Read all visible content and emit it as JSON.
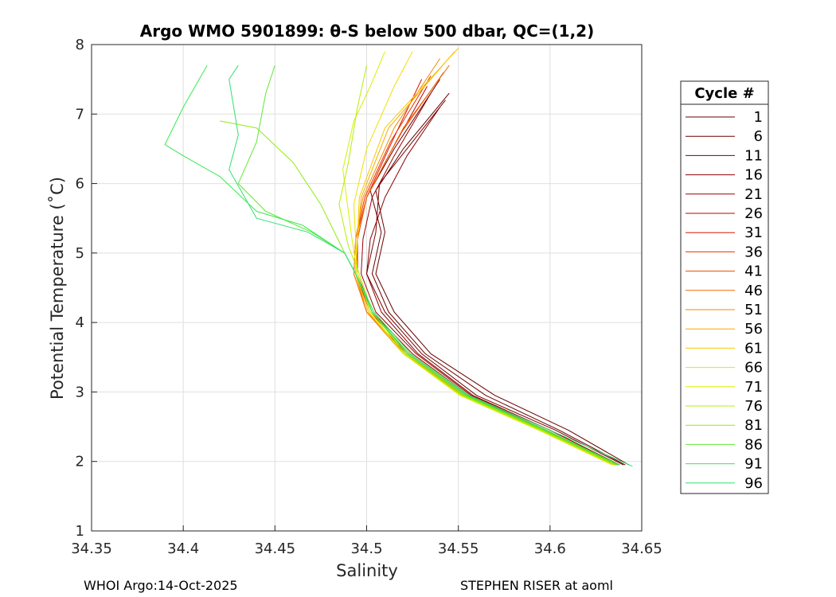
{
  "chart_data": {
    "type": "line",
    "title": "Argo WMO 5901899: θ-S below 500 dbar,  QC=(1,2)",
    "xlabel": "Salinity",
    "ylabel": "Potential Temperature (˚C)",
    "xlim": [
      34.35,
      34.65
    ],
    "ylim": [
      1,
      8
    ],
    "xticks": [
      "34.35",
      "34.4",
      "34.45",
      "34.5",
      "34.55",
      "34.6",
      "34.65"
    ],
    "yticks": [
      "1",
      "2",
      "3",
      "4",
      "5",
      "6",
      "7",
      "8"
    ],
    "grid": true,
    "legend_title": "Cycle #",
    "legend_position": "outside-right",
    "series": [
      {
        "name": "1",
        "color": "#660000",
        "points": [
          [
            34.643,
            1.95
          ],
          [
            34.61,
            2.45
          ],
          [
            34.57,
            2.95
          ],
          [
            34.535,
            3.55
          ],
          [
            34.515,
            4.15
          ],
          [
            34.505,
            4.7
          ],
          [
            34.51,
            5.3
          ],
          [
            34.505,
            5.9
          ],
          [
            34.52,
            6.5
          ],
          [
            34.545,
            7.3
          ]
        ]
      },
      {
        "name": "6",
        "color": "#6b0000",
        "points": [
          [
            34.641,
            1.95
          ],
          [
            34.605,
            2.45
          ],
          [
            34.565,
            2.95
          ],
          [
            34.532,
            3.55
          ],
          [
            34.512,
            4.15
          ],
          [
            34.503,
            4.7
          ],
          [
            34.508,
            5.3
          ],
          [
            34.502,
            5.9
          ],
          [
            34.515,
            6.5
          ],
          [
            34.54,
            7.5
          ]
        ]
      },
      {
        "name": "11",
        "color": "#7a0000",
        "points": [
          [
            34.64,
            1.95
          ],
          [
            34.603,
            2.45
          ],
          [
            34.56,
            2.95
          ],
          [
            34.53,
            3.55
          ],
          [
            34.51,
            4.15
          ],
          [
            34.5,
            4.7
          ],
          [
            34.505,
            5.3
          ],
          [
            34.507,
            6.0
          ],
          [
            34.525,
            6.6
          ],
          [
            34.543,
            7.2
          ]
        ]
      },
      {
        "name": "16",
        "color": "#8a0000",
        "points": [
          [
            34.638,
            1.95
          ],
          [
            34.6,
            2.45
          ],
          [
            34.558,
            2.95
          ],
          [
            34.528,
            3.55
          ],
          [
            34.508,
            4.15
          ],
          [
            34.5,
            4.7
          ],
          [
            34.502,
            5.2
          ],
          [
            34.51,
            5.8
          ],
          [
            34.522,
            6.4
          ],
          [
            34.54,
            7.1
          ]
        ]
      },
      {
        "name": "21",
        "color": "#9e0000",
        "points": [
          [
            34.638,
            1.95
          ],
          [
            34.6,
            2.45
          ],
          [
            34.557,
            2.95
          ],
          [
            34.527,
            3.55
          ],
          [
            34.505,
            4.15
          ],
          [
            34.497,
            4.7
          ],
          [
            34.498,
            5.2
          ],
          [
            34.503,
            5.8
          ],
          [
            34.515,
            6.4
          ],
          [
            34.535,
            7.3
          ]
        ]
      },
      {
        "name": "26",
        "color": "#c00000",
        "points": [
          [
            34.637,
            1.95
          ],
          [
            34.598,
            2.45
          ],
          [
            34.556,
            2.95
          ],
          [
            34.525,
            3.55
          ],
          [
            34.503,
            4.15
          ],
          [
            34.495,
            4.7
          ],
          [
            34.495,
            5.2
          ],
          [
            34.5,
            5.8
          ],
          [
            34.512,
            6.4
          ],
          [
            34.533,
            7.4
          ]
        ]
      },
      {
        "name": "31",
        "color": "#d81800",
        "points": [
          [
            34.637,
            1.95
          ],
          [
            34.598,
            2.45
          ],
          [
            34.555,
            2.95
          ],
          [
            34.523,
            3.55
          ],
          [
            34.502,
            4.15
          ],
          [
            34.494,
            4.7
          ],
          [
            34.495,
            5.2
          ],
          [
            34.5,
            5.8
          ],
          [
            34.512,
            6.5
          ],
          [
            34.53,
            7.5
          ]
        ]
      },
      {
        "name": "36",
        "color": "#e83000",
        "points": [
          [
            34.636,
            1.95
          ],
          [
            34.597,
            2.45
          ],
          [
            34.554,
            2.95
          ],
          [
            34.522,
            3.55
          ],
          [
            34.5,
            4.15
          ],
          [
            34.493,
            4.7
          ],
          [
            34.494,
            5.2
          ],
          [
            34.499,
            5.8
          ],
          [
            34.513,
            6.6
          ],
          [
            34.535,
            7.55
          ]
        ]
      },
      {
        "name": "41",
        "color": "#f04800",
        "points": [
          [
            34.636,
            1.95
          ],
          [
            34.596,
            2.45
          ],
          [
            34.553,
            2.95
          ],
          [
            34.52,
            3.55
          ],
          [
            34.5,
            4.15
          ],
          [
            34.493,
            4.7
          ],
          [
            34.494,
            5.2
          ],
          [
            34.5,
            5.8
          ],
          [
            34.518,
            6.7
          ],
          [
            34.542,
            7.6
          ]
        ]
      },
      {
        "name": "46",
        "color": "#f46800",
        "points": [
          [
            34.635,
            1.95
          ],
          [
            34.596,
            2.45
          ],
          [
            34.553,
            2.95
          ],
          [
            34.521,
            3.55
          ],
          [
            34.5,
            4.15
          ],
          [
            34.494,
            4.7
          ],
          [
            34.495,
            5.2
          ],
          [
            34.5,
            5.8
          ],
          [
            34.52,
            6.8
          ],
          [
            34.545,
            7.7
          ]
        ]
      },
      {
        "name": "51",
        "color": "#f68800",
        "points": [
          [
            34.635,
            1.95
          ],
          [
            34.595,
            2.45
          ],
          [
            34.552,
            2.95
          ],
          [
            34.52,
            3.55
          ],
          [
            34.5,
            4.15
          ],
          [
            34.493,
            4.7
          ],
          [
            34.494,
            5.2
          ],
          [
            34.498,
            5.8
          ],
          [
            34.515,
            6.8
          ],
          [
            34.54,
            7.8
          ]
        ]
      },
      {
        "name": "56",
        "color": "#f8a800",
        "points": [
          [
            34.635,
            1.95
          ],
          [
            34.595,
            2.45
          ],
          [
            34.552,
            2.95
          ],
          [
            34.52,
            3.55
          ],
          [
            34.501,
            4.15
          ],
          [
            34.494,
            4.7
          ],
          [
            34.495,
            5.2
          ],
          [
            34.497,
            5.8
          ],
          [
            34.512,
            6.8
          ],
          [
            34.548,
            7.9
          ]
        ]
      },
      {
        "name": "61",
        "color": "#f8c800",
        "points": [
          [
            34.634,
            1.95
          ],
          [
            34.594,
            2.45
          ],
          [
            34.551,
            2.95
          ],
          [
            34.52,
            3.55
          ],
          [
            34.501,
            4.15
          ],
          [
            34.494,
            4.7
          ],
          [
            34.495,
            5.2
          ],
          [
            34.496,
            5.8
          ],
          [
            34.51,
            6.8
          ],
          [
            34.55,
            7.95
          ]
        ]
      },
      {
        "name": "66",
        "color": "#f0e000",
        "points": [
          [
            34.634,
            1.95
          ],
          [
            34.594,
            2.45
          ],
          [
            34.551,
            2.95
          ],
          [
            34.52,
            3.55
          ],
          [
            34.502,
            4.15
          ],
          [
            34.495,
            4.7
          ],
          [
            34.494,
            5.2
          ],
          [
            34.493,
            5.7
          ],
          [
            34.5,
            6.5
          ],
          [
            34.515,
            7.4
          ],
          [
            34.525,
            7.9
          ]
        ]
      },
      {
        "name": "71",
        "color": "#d8f000",
        "points": [
          [
            34.634,
            1.95
          ],
          [
            34.594,
            2.45
          ],
          [
            34.551,
            2.95
          ],
          [
            34.52,
            3.55
          ],
          [
            34.502,
            4.15
          ],
          [
            34.495,
            4.7
          ],
          [
            34.492,
            5.2
          ],
          [
            34.49,
            5.6
          ],
          [
            34.487,
            6.2
          ],
          [
            34.493,
            6.9
          ],
          [
            34.502,
            7.4
          ],
          [
            34.51,
            7.9
          ]
        ]
      },
      {
        "name": "76",
        "color": "#b4f000",
        "points": [
          [
            34.635,
            1.95
          ],
          [
            34.595,
            2.45
          ],
          [
            34.552,
            2.95
          ],
          [
            34.521,
            3.55
          ],
          [
            34.503,
            4.15
          ],
          [
            34.496,
            4.7
          ],
          [
            34.49,
            5.1
          ],
          [
            34.485,
            5.7
          ],
          [
            34.49,
            6.3
          ],
          [
            34.495,
            7.1
          ],
          [
            34.5,
            7.7
          ]
        ]
      },
      {
        "name": "81",
        "color": "#90ec10",
        "points": [
          [
            34.636,
            1.95
          ],
          [
            34.596,
            2.45
          ],
          [
            34.553,
            2.95
          ],
          [
            34.522,
            3.55
          ],
          [
            34.503,
            4.15
          ],
          [
            34.494,
            4.7
          ],
          [
            34.488,
            5.0
          ],
          [
            34.475,
            5.7
          ],
          [
            34.46,
            6.3
          ],
          [
            34.44,
            6.8
          ],
          [
            34.42,
            6.9
          ]
        ]
      },
      {
        "name": "86",
        "color": "#60e830",
        "points": [
          [
            34.637,
            1.95
          ],
          [
            34.597,
            2.45
          ],
          [
            34.554,
            2.95
          ],
          [
            34.522,
            3.55
          ],
          [
            34.503,
            4.15
          ],
          [
            34.494,
            4.7
          ],
          [
            34.488,
            5.0
          ],
          [
            34.47,
            5.3
          ],
          [
            34.445,
            5.6
          ],
          [
            34.43,
            6.0
          ],
          [
            34.44,
            6.6
          ],
          [
            34.445,
            7.3
          ],
          [
            34.45,
            7.7
          ]
        ]
      },
      {
        "name": "91",
        "color": "#38e850",
        "points": [
          [
            34.638,
            1.95
          ],
          [
            34.598,
            2.45
          ],
          [
            34.555,
            2.95
          ],
          [
            34.523,
            3.55
          ],
          [
            34.503,
            4.15
          ],
          [
            34.494,
            4.7
          ],
          [
            34.488,
            5.0
          ],
          [
            34.465,
            5.4
          ],
          [
            34.44,
            5.6
          ],
          [
            34.42,
            6.1
          ],
          [
            34.4,
            6.4
          ],
          [
            34.39,
            6.56
          ],
          [
            34.4,
            7.1
          ],
          [
            34.413,
            7.7
          ]
        ]
      },
      {
        "name": "96",
        "color": "#30e070",
        "points": [
          [
            34.645,
            1.93
          ],
          [
            34.6,
            2.45
          ],
          [
            34.556,
            2.95
          ],
          [
            34.524,
            3.55
          ],
          [
            34.504,
            4.15
          ],
          [
            34.494,
            4.7
          ],
          [
            34.488,
            5.0
          ],
          [
            34.468,
            5.3
          ],
          [
            34.44,
            5.5
          ],
          [
            34.425,
            6.2
          ],
          [
            34.43,
            6.7
          ],
          [
            34.425,
            7.5
          ],
          [
            34.43,
            7.7
          ]
        ]
      }
    ]
  },
  "footer": {
    "left": "WHOI Argo:14-Oct-2025",
    "right": "STEPHEN RISER at aoml"
  }
}
